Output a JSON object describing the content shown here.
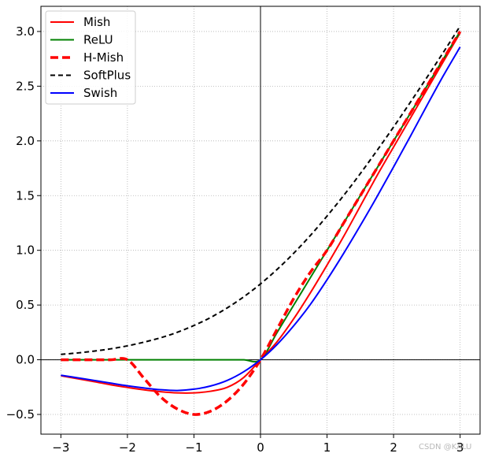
{
  "chart_data": {
    "type": "line",
    "title": "",
    "xlabel": "",
    "ylabel": "",
    "xlim": [
      -3.3,
      3.3
    ],
    "ylim": [
      -0.68,
      3.23
    ],
    "xticks": [
      -3,
      -2,
      -1,
      0,
      1,
      2,
      3
    ],
    "xtick_labels": [
      "−3",
      "−2",
      "−1",
      "0",
      "1",
      "2",
      "3"
    ],
    "yticks": [
      -0.5,
      0.0,
      0.5,
      1.0,
      1.5,
      2.0,
      2.5,
      3.0
    ],
    "ytick_labels": [
      "−0.5",
      "0.0",
      "0.5",
      "1.0",
      "1.5",
      "2.0",
      "2.5",
      "3.0"
    ],
    "grid": true,
    "legend_position": "top-left",
    "x": [
      -3.0,
      -2.75,
      -2.5,
      -2.25,
      -2.0,
      -1.75,
      -1.5,
      -1.25,
      -1.0,
      -0.75,
      -0.5,
      -0.25,
      0.0,
      0.25,
      0.5,
      0.75,
      1.0,
      1.25,
      1.5,
      1.75,
      2.0,
      2.25,
      2.5,
      2.75,
      3.0
    ],
    "series": [
      {
        "name": "Mish",
        "color": "#ff0000",
        "style": "solid",
        "width": 2,
        "values": [
          -0.146,
          -0.173,
          -0.2,
          -0.229,
          -0.253,
          -0.275,
          -0.292,
          -0.303,
          -0.303,
          -0.288,
          -0.252,
          -0.161,
          0.0,
          0.165,
          0.375,
          0.612,
          0.865,
          1.127,
          1.404,
          1.681,
          1.944,
          2.205,
          2.466,
          2.727,
          2.986
        ]
      },
      {
        "name": "ReLU",
        "color": "#008000",
        "style": "solid",
        "width": 2,
        "values": [
          0.0,
          0.0,
          0.0,
          0.0,
          0.0,
          0.0,
          0.0,
          0.0,
          0.0,
          0.0,
          0.0,
          0.0,
          0.0,
          0.25,
          0.5,
          0.75,
          1.0,
          1.25,
          1.5,
          1.75,
          2.0,
          2.25,
          2.5,
          2.75,
          3.0
        ]
      },
      {
        "name": "H-Mish",
        "color": "#ff0000",
        "style": "dashed-thick",
        "width": 3.5,
        "values": [
          0.0,
          0.0,
          0.0,
          0.0,
          0.0,
          -0.17,
          -0.34,
          -0.45,
          -0.5,
          -0.47,
          -0.375,
          -0.22,
          0.0,
          0.28,
          0.56,
          0.8,
          1.0,
          1.25,
          1.5,
          1.75,
          2.0,
          2.25,
          2.5,
          2.75,
          3.0
        ]
      },
      {
        "name": "SoftPlus",
        "color": "#000000",
        "style": "dashed",
        "width": 2,
        "values": [
          0.049,
          0.062,
          0.079,
          0.1,
          0.127,
          0.161,
          0.201,
          0.251,
          0.313,
          0.386,
          0.474,
          0.576,
          0.693,
          0.826,
          0.974,
          1.136,
          1.313,
          1.501,
          1.701,
          1.911,
          2.127,
          2.351,
          2.579,
          2.811,
          3.049
        ]
      },
      {
        "name": "Swish",
        "color": "#0000ff",
        "style": "solid",
        "width": 2,
        "values": [
          -0.142,
          -0.165,
          -0.189,
          -0.214,
          -0.238,
          -0.258,
          -0.274,
          -0.281,
          -0.269,
          -0.24,
          -0.189,
          -0.109,
          0.0,
          0.14,
          0.311,
          0.506,
          0.731,
          0.972,
          1.226,
          1.489,
          1.762,
          2.039,
          2.322,
          2.598,
          2.858
        ]
      }
    ]
  },
  "watermark": "CSDN @KALU",
  "colors": {
    "axis": "#000000",
    "grid": "#b0b0b0",
    "zero_line": "#000000"
  }
}
